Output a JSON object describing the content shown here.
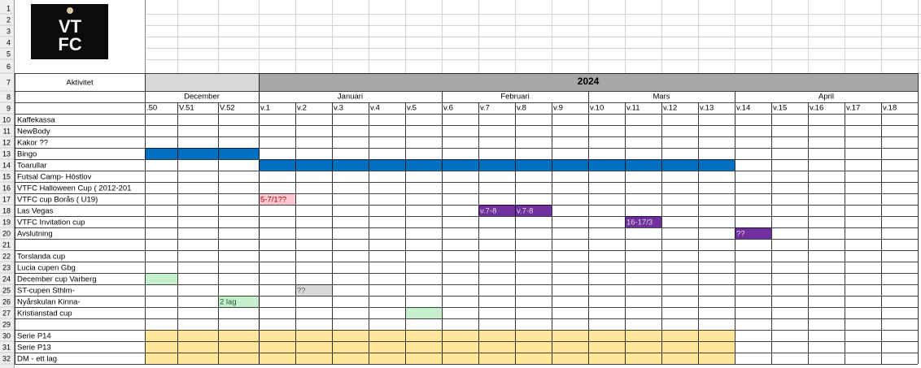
{
  "logo": {
    "line1": "VT",
    "line2": "FC"
  },
  "header": {
    "activity": "Aktivitet",
    "year": "2024"
  },
  "months": [
    "December",
    "Januari",
    "Februari",
    "Mars",
    "April"
  ],
  "weeks": [
    ".50",
    "V.51",
    "V.52",
    "v.1",
    "v.2",
    "v.3",
    "v.4",
    "v.5",
    "v.6",
    "v.7",
    "v.8",
    "v.9",
    "v.10",
    "v.11",
    "v.12",
    "v.13",
    "v.14",
    "v.15",
    "v.16",
    "v.17",
    "v.18"
  ],
  "row_numbers": [
    1,
    2,
    3,
    4,
    5,
    6,
    7,
    8,
    9,
    10,
    11,
    12,
    13,
    14,
    15,
    16,
    17,
    18,
    19,
    20,
    21,
    22,
    23,
    24,
    25,
    26,
    27,
    29,
    30,
    31,
    32
  ],
  "activities": [
    {
      "label": "Kaffekassa"
    },
    {
      "label": "NewBody"
    },
    {
      "label": "Kakor ??"
    },
    {
      "label": "Bingo",
      "cells": [
        {
          "col": 0,
          "color": "#0070c0"
        },
        {
          "col": 1,
          "color": "#0070c0"
        },
        {
          "col": 2,
          "color": "#0070c0"
        }
      ]
    },
    {
      "label": "Toarullar",
      "cells": [
        {
          "col": 3,
          "color": "#0070c0"
        },
        {
          "col": 4,
          "color": "#0070c0"
        },
        {
          "col": 5,
          "color": "#0070c0"
        },
        {
          "col": 6,
          "color": "#0070c0"
        },
        {
          "col": 7,
          "color": "#0070c0"
        },
        {
          "col": 8,
          "color": "#0070c0"
        },
        {
          "col": 9,
          "color": "#0070c0"
        },
        {
          "col": 10,
          "color": "#0070c0"
        },
        {
          "col": 11,
          "color": "#0070c0"
        },
        {
          "col": 12,
          "color": "#0070c0"
        },
        {
          "col": 13,
          "color": "#0070c0"
        },
        {
          "col": 14,
          "color": "#0070c0"
        },
        {
          "col": 15,
          "color": "#0070c0"
        }
      ]
    },
    {
      "label": "Futsal Camp- Höstlov"
    },
    {
      "label": "VTFC Halloween Cup ( 2012-201"
    },
    {
      "label": "VTFC cup Borås ( U19)",
      "cells": [
        {
          "col": 3,
          "color": "#ffc7ce",
          "text": "5-7/1??",
          "text_color": "#9c0006"
        }
      ]
    },
    {
      "label": "Las Vegas",
      "cells": [
        {
          "col": 9,
          "color": "#7030a0",
          "text": "v.7-8",
          "text_color": "#d9d9d9"
        },
        {
          "col": 10,
          "color": "#7030a0",
          "text": "v.7-8",
          "text_color": "#d9d9d9"
        }
      ]
    },
    {
      "label": "VTFC Invitation cup",
      "cells": [
        {
          "col": 13,
          "color": "#7030a0",
          "text": "16-17/3",
          "text_color": "#d9d9d9"
        }
      ]
    },
    {
      "label": "Avslutning",
      "cells": [
        {
          "col": 16,
          "color": "#7030a0",
          "text": "??",
          "text_color": "#d9d9d9"
        }
      ]
    },
    null,
    {
      "label": "Torslanda cup"
    },
    {
      "label": "Lucia cupen Gbg"
    },
    {
      "label": "December cup Varberg",
      "cells": [
        {
          "col": 0,
          "color": "#c6efce"
        }
      ]
    },
    {
      "label": "ST-cupen Sthlm-",
      "cells": [
        {
          "col": 4,
          "color": "#d9d9d9",
          "text": "??",
          "text_color": "#595959"
        }
      ]
    },
    {
      "label": "Nyårskulan Kinna-",
      "cells": [
        {
          "col": 2,
          "color": "#c6efce",
          "text": "2 lag",
          "text_color": "#1e5b2a"
        }
      ]
    },
    {
      "label": "Kristianstad cup",
      "cells": [
        {
          "col": 7,
          "color": "#c6efce"
        }
      ]
    },
    null,
    {
      "label": "Serie P14",
      "cells": [
        {
          "col": 0,
          "color": "#ffe699"
        },
        {
          "col": 1,
          "color": "#ffe699"
        },
        {
          "col": 2,
          "color": "#ffe699"
        },
        {
          "col": 3,
          "color": "#ffe699"
        },
        {
          "col": 4,
          "color": "#ffe699"
        },
        {
          "col": 5,
          "color": "#ffe699"
        },
        {
          "col": 6,
          "color": "#ffe699"
        },
        {
          "col": 7,
          "color": "#ffe699"
        },
        {
          "col": 8,
          "color": "#ffe699"
        },
        {
          "col": 9,
          "color": "#ffe699"
        },
        {
          "col": 10,
          "color": "#ffe699"
        },
        {
          "col": 11,
          "color": "#ffe699"
        },
        {
          "col": 12,
          "color": "#ffe699"
        },
        {
          "col": 13,
          "color": "#ffe699"
        },
        {
          "col": 14,
          "color": "#ffe699"
        },
        {
          "col": 15,
          "color": "#ffe699"
        }
      ]
    },
    {
      "label": "Serie P13",
      "cells": [
        {
          "col": 0,
          "color": "#ffe699"
        },
        {
          "col": 1,
          "color": "#ffe699"
        },
        {
          "col": 2,
          "color": "#ffe699"
        },
        {
          "col": 3,
          "color": "#ffe699"
        },
        {
          "col": 4,
          "color": "#ffe699"
        },
        {
          "col": 5,
          "color": "#ffe699"
        },
        {
          "col": 6,
          "color": "#ffe699"
        },
        {
          "col": 7,
          "color": "#ffe699"
        },
        {
          "col": 8,
          "color": "#ffe699"
        },
        {
          "col": 9,
          "color": "#ffe699"
        },
        {
          "col": 10,
          "color": "#ffe699"
        },
        {
          "col": 11,
          "color": "#ffe699"
        },
        {
          "col": 12,
          "color": "#ffe699"
        },
        {
          "col": 13,
          "color": "#ffe699"
        },
        {
          "col": 14,
          "color": "#ffe699"
        },
        {
          "col": 15,
          "color": "#ffe699"
        }
      ]
    },
    {
      "label": "DM - ett lag",
      "cells": [
        {
          "col": 0,
          "color": "#ffe699"
        },
        {
          "col": 1,
          "color": "#ffe699"
        },
        {
          "col": 2,
          "color": "#ffe699"
        },
        {
          "col": 3,
          "color": "#ffe699"
        },
        {
          "col": 4,
          "color": "#ffe699"
        },
        {
          "col": 5,
          "color": "#ffe699"
        },
        {
          "col": 6,
          "color": "#ffe699"
        },
        {
          "col": 7,
          "color": "#ffe699"
        },
        {
          "col": 8,
          "color": "#ffe699"
        },
        {
          "col": 9,
          "color": "#ffe699"
        },
        {
          "col": 10,
          "color": "#ffe699"
        },
        {
          "col": 11,
          "color": "#ffe699"
        },
        {
          "col": 12,
          "color": "#ffe699"
        },
        {
          "col": 13,
          "color": "#ffe699"
        },
        {
          "col": 14,
          "color": "#ffe699"
        },
        {
          "col": 15,
          "color": "#ffe699"
        }
      ]
    }
  ]
}
